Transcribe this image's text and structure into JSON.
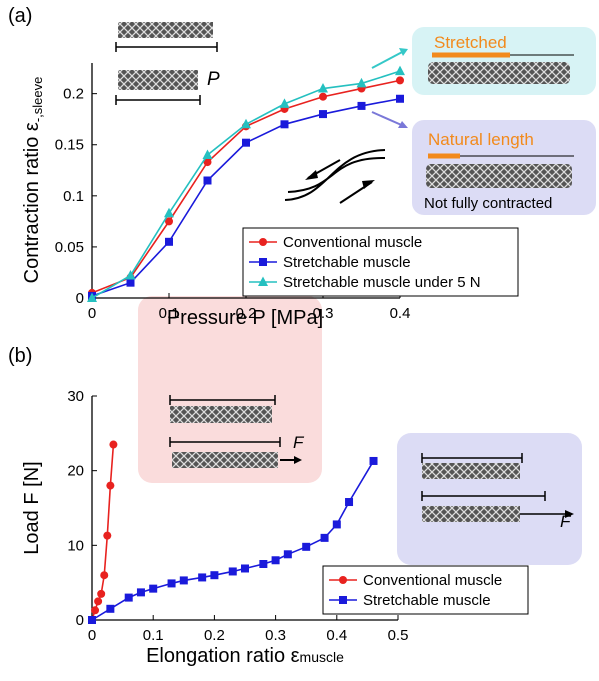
{
  "chart_data": [
    {
      "type": "line",
      "panel_label": "(a)",
      "xlabel": "Pressure P [MPa]",
      "ylabel": "Contraction ratio ε",
      "ylabel_sub": "-,sleeve",
      "xlim": [
        0,
        0.4
      ],
      "ylim": [
        0,
        0.23
      ],
      "xticks": [
        0,
        0.1,
        0.2,
        0.3,
        0.4
      ],
      "yticks": [
        0,
        0.05,
        0.1,
        0.15,
        0.2
      ],
      "legend": "lower right",
      "annotations": [
        "P",
        "Stretched",
        "Natural length",
        "Not fully contracted"
      ],
      "series": [
        {
          "name": "Conventional muscle",
          "color": "#e8221f",
          "marker": "circle",
          "x": [
            0,
            0.05,
            0.1,
            0.15,
            0.2,
            0.25,
            0.3,
            0.35,
            0.4
          ],
          "values": [
            0.005,
            0.02,
            0.075,
            0.133,
            0.168,
            0.185,
            0.197,
            0.205,
            0.213
          ]
        },
        {
          "name": "Stretchable muscle",
          "color": "#1a1adb",
          "marker": "square",
          "x": [
            0,
            0.05,
            0.1,
            0.15,
            0.2,
            0.25,
            0.3,
            0.35,
            0.4
          ],
          "values": [
            0.002,
            0.015,
            0.055,
            0.115,
            0.152,
            0.17,
            0.18,
            0.188,
            0.195
          ]
        },
        {
          "name": "Stretchable muscle under 5 N",
          "color": "#25c0c0",
          "marker": "triangle",
          "x": [
            0,
            0.05,
            0.1,
            0.15,
            0.2,
            0.25,
            0.3,
            0.35,
            0.4
          ],
          "values": [
            0,
            0.022,
            0.083,
            0.14,
            0.17,
            0.19,
            0.205,
            0.21,
            0.222
          ]
        }
      ]
    },
    {
      "type": "line",
      "panel_label": "(b)",
      "xlabel": "Elongation ratio ε",
      "xlabel_sub": "muscle",
      "ylabel": "Load F [N]",
      "xlim": [
        0,
        0.5
      ],
      "ylim": [
        0,
        30
      ],
      "xticks": [
        0,
        0.1,
        0.2,
        0.3,
        0.4,
        0.5
      ],
      "yticks": [
        0,
        10,
        20,
        30
      ],
      "legend": "lower right",
      "annotations": [
        "F",
        "F"
      ],
      "series": [
        {
          "name": "Conventional muscle",
          "color": "#e8221f",
          "marker": "circle",
          "x": [
            0,
            0.005,
            0.01,
            0.015,
            0.02,
            0.025,
            0.03,
            0.035
          ],
          "values": [
            0,
            1.3,
            2.5,
            3.5,
            6,
            11.3,
            18,
            23.5
          ]
        },
        {
          "name": "Stretchable muscle",
          "color": "#1a1adb",
          "marker": "square",
          "x": [
            0,
            0.03,
            0.06,
            0.08,
            0.1,
            0.13,
            0.15,
            0.18,
            0.2,
            0.23,
            0.25,
            0.28,
            0.3,
            0.32,
            0.35,
            0.38,
            0.4,
            0.42,
            0.46
          ],
          "values": [
            0,
            1.5,
            3.0,
            3.7,
            4.2,
            4.9,
            5.3,
            5.7,
            6.0,
            6.5,
            6.9,
            7.5,
            8.0,
            8.8,
            9.8,
            11.0,
            12.8,
            15.8,
            21.3
          ]
        }
      ]
    }
  ]
}
